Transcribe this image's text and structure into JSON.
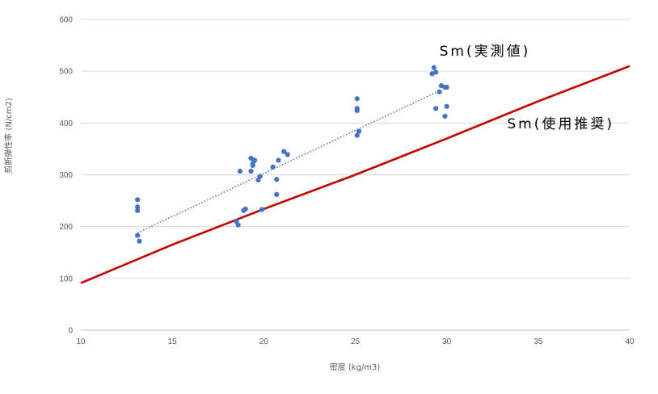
{
  "chart_data": {
    "type": "scatter",
    "xlabel": "密度 (kg/m3)",
    "ylabel": "剪断弾性率 (N/cm2)",
    "xlim": [
      10,
      40
    ],
    "ylim": [
      0,
      600
    ],
    "x_ticks": [
      "10",
      "15",
      "20",
      "25",
      "30",
      "35",
      "40"
    ],
    "y_ticks": [
      "0",
      "100",
      "200",
      "300",
      "400",
      "500",
      "600"
    ],
    "grid": "horizontal",
    "colors": {
      "points": "#4472c4",
      "trend": "#4472c4",
      "line": "#c00000",
      "grid": "#d9d9d9"
    },
    "series": [
      {
        "kind": "points",
        "values": [
          [
            13.1,
            252
          ],
          [
            13.1,
            238
          ],
          [
            13.1,
            231
          ],
          [
            13.1,
            183
          ],
          [
            13.2,
            172
          ],
          [
            18.5,
            210
          ],
          [
            18.6,
            203
          ],
          [
            18.7,
            307
          ],
          [
            18.9,
            231
          ],
          [
            19.0,
            234
          ],
          [
            19.3,
            332
          ],
          [
            19.3,
            307
          ],
          [
            19.4,
            322
          ],
          [
            19.4,
            318
          ],
          [
            19.5,
            328
          ],
          [
            19.7,
            290
          ],
          [
            19.8,
            297
          ],
          [
            19.9,
            233
          ],
          [
            20.5,
            315
          ],
          [
            20.7,
            291
          ],
          [
            20.7,
            262
          ],
          [
            20.8,
            328
          ],
          [
            21.1,
            345
          ],
          [
            21.3,
            339
          ],
          [
            25.1,
            447
          ],
          [
            25.1,
            428
          ],
          [
            25.1,
            424
          ],
          [
            25.1,
            376
          ],
          [
            25.2,
            384
          ],
          [
            29.2,
            495
          ],
          [
            29.3,
            507
          ],
          [
            29.4,
            498
          ],
          [
            29.4,
            428
          ],
          [
            29.6,
            460
          ],
          [
            29.7,
            472
          ],
          [
            29.9,
            469
          ],
          [
            30.0,
            469
          ],
          [
            30.0,
            432
          ],
          [
            29.9,
            413
          ]
        ]
      },
      {
        "kind": "trend",
        "values": [
          [
            13.1,
            188
          ],
          [
            29.6,
            462
          ]
        ]
      },
      {
        "kind": "line",
        "values": [
          [
            10,
            91
          ],
          [
            15,
            165
          ],
          [
            20,
            234
          ],
          [
            25,
            300
          ],
          [
            30,
            370
          ],
          [
            35,
            442
          ],
          [
            40,
            510
          ]
        ]
      }
    ],
    "annotations": [
      {
        "text": "Sm(実測値)",
        "x": 29.6,
        "y": 530
      },
      {
        "text": "Sm(使用推奨)",
        "x": 33.3,
        "y": 390
      }
    ]
  }
}
